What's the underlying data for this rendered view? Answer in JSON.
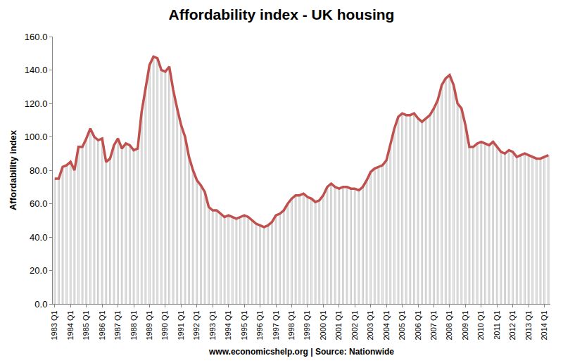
{
  "chart_data": {
    "type": "line",
    "title": "Affordability index - UK housing",
    "x_label": "www.economicshelp.org | Source: Nationwide",
    "y_label": "Affordability index",
    "categories": [
      "1983 Q1",
      null,
      null,
      null,
      "1984 Q1",
      null,
      null,
      null,
      "1985 Q1",
      null,
      null,
      null,
      "1986 Q1",
      null,
      null,
      null,
      "1987 Q1",
      null,
      null,
      null,
      "1988 Q1",
      null,
      null,
      null,
      "1989 Q1",
      null,
      null,
      null,
      "1990 Q1",
      null,
      null,
      null,
      "1991 Q1",
      null,
      null,
      null,
      "1992 Q1",
      null,
      null,
      null,
      "1993 Q1",
      null,
      null,
      null,
      "1994 Q1",
      null,
      null,
      null,
      "1995 Q1",
      null,
      null,
      null,
      "1996 Q1",
      null,
      null,
      null,
      "1997 Q1",
      null,
      null,
      null,
      "1998 Q1",
      null,
      null,
      null,
      "1999 Q1",
      null,
      null,
      null,
      "2000 Q1",
      null,
      null,
      null,
      "2001 Q1",
      null,
      null,
      null,
      "2002 Q1",
      null,
      null,
      null,
      "2003 Q1",
      null,
      null,
      null,
      "2004 Q1",
      null,
      null,
      null,
      "2005 Q1",
      null,
      null,
      null,
      "2006 Q1",
      null,
      null,
      null,
      "2007 Q1",
      null,
      null,
      null,
      "2008 Q1",
      null,
      null,
      null,
      "2009 Q1",
      null,
      null,
      null,
      "2010 Q1",
      null,
      null,
      null,
      "2011 Q1",
      null,
      null,
      null,
      "2012 Q1",
      null,
      null,
      null,
      "2013 Q1",
      null,
      null,
      null,
      "2014 Q1",
      null
    ],
    "values": [
      75,
      75,
      82,
      83,
      85,
      80,
      94,
      94,
      99,
      105,
      100,
      98,
      99,
      85,
      87,
      95,
      99,
      93,
      96,
      95,
      92,
      93,
      115,
      130,
      143,
      148,
      147,
      140,
      139,
      142,
      128,
      117,
      107,
      100,
      88,
      80,
      74,
      71,
      67,
      58,
      56,
      56,
      54,
      52,
      53,
      52,
      51,
      52,
      53,
      52,
      50,
      48,
      47,
      46,
      47,
      49,
      53,
      54,
      56,
      60,
      63,
      65,
      65,
      66,
      64,
      63,
      61,
      62,
      65,
      70,
      72,
      70,
      69,
      70,
      70,
      69,
      69,
      68,
      70,
      74,
      79,
      81,
      82,
      83,
      86,
      95,
      105,
      112,
      114,
      113,
      113,
      114,
      111,
      109,
      111,
      113,
      117,
      122,
      131,
      135,
      137,
      131,
      120,
      117,
      107,
      94,
      94,
      96,
      97,
      96,
      95,
      97,
      94,
      91,
      90,
      92,
      91,
      88,
      89,
      90,
      89,
      88,
      87,
      87,
      88,
      89
    ],
    "color": "#c0504d",
    "ylim": [
      0,
      160
    ],
    "yticks": [
      {
        "value": 0,
        "label": "0.0"
      },
      {
        "value": 20,
        "label": "20.0"
      },
      {
        "value": 40,
        "label": "40.0"
      },
      {
        "value": 60,
        "label": "60.0"
      },
      {
        "value": 80,
        "label": "80.0"
      },
      {
        "value": 100,
        "label": "100.0"
      },
      {
        "value": 120,
        "label": "120.0"
      },
      {
        "value": 140,
        "label": "140.0"
      },
      {
        "value": 160,
        "label": "160.0"
      }
    ],
    "grid": false
  }
}
